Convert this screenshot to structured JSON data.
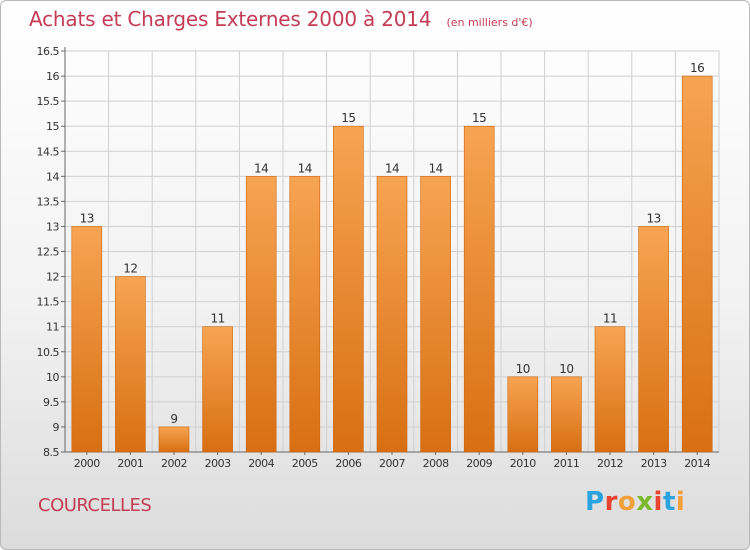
{
  "header": {
    "title": "Achats et Charges Externes 2000 à 2014",
    "subtitle": "(en milliers d'€)"
  },
  "footer": {
    "city": "COURCELLES",
    "logo": "Proxiti",
    "logo_colors": [
      "#2aa3df",
      "#e8432f",
      "#f2a13a",
      "#7ab929",
      "#e8432f",
      "#2aa3df",
      "#f2a13a"
    ]
  },
  "colors": {
    "bar_top": "#f7a452",
    "bar_bottom": "#d86f12",
    "title": "#c43c55",
    "grid": "#d0d0d0"
  },
  "chart_data": {
    "type": "bar",
    "categories": [
      "2000",
      "2001",
      "2002",
      "2003",
      "2004",
      "2005",
      "2006",
      "2007",
      "2008",
      "2009",
      "2010",
      "2011",
      "2012",
      "2013",
      "2014"
    ],
    "values": [
      13,
      12,
      9,
      11,
      14,
      14,
      15,
      14,
      14,
      15,
      10,
      10,
      11,
      13,
      16
    ],
    "data_labels": [
      "13",
      "12",
      "9",
      "11",
      "14",
      "14",
      "15",
      "14",
      "14",
      "15",
      "10",
      "10",
      "11",
      "13",
      "16"
    ],
    "y_ticks": [
      "8.5",
      "9",
      "9.5",
      "10",
      "10.5",
      "11",
      "11.5",
      "12",
      "12.5",
      "13",
      "13.5",
      "14",
      "14.5",
      "15",
      "15.5",
      "16",
      "16.5"
    ],
    "ylim": [
      8.5,
      16.5
    ],
    "grid": true,
    "legend": "none"
  }
}
